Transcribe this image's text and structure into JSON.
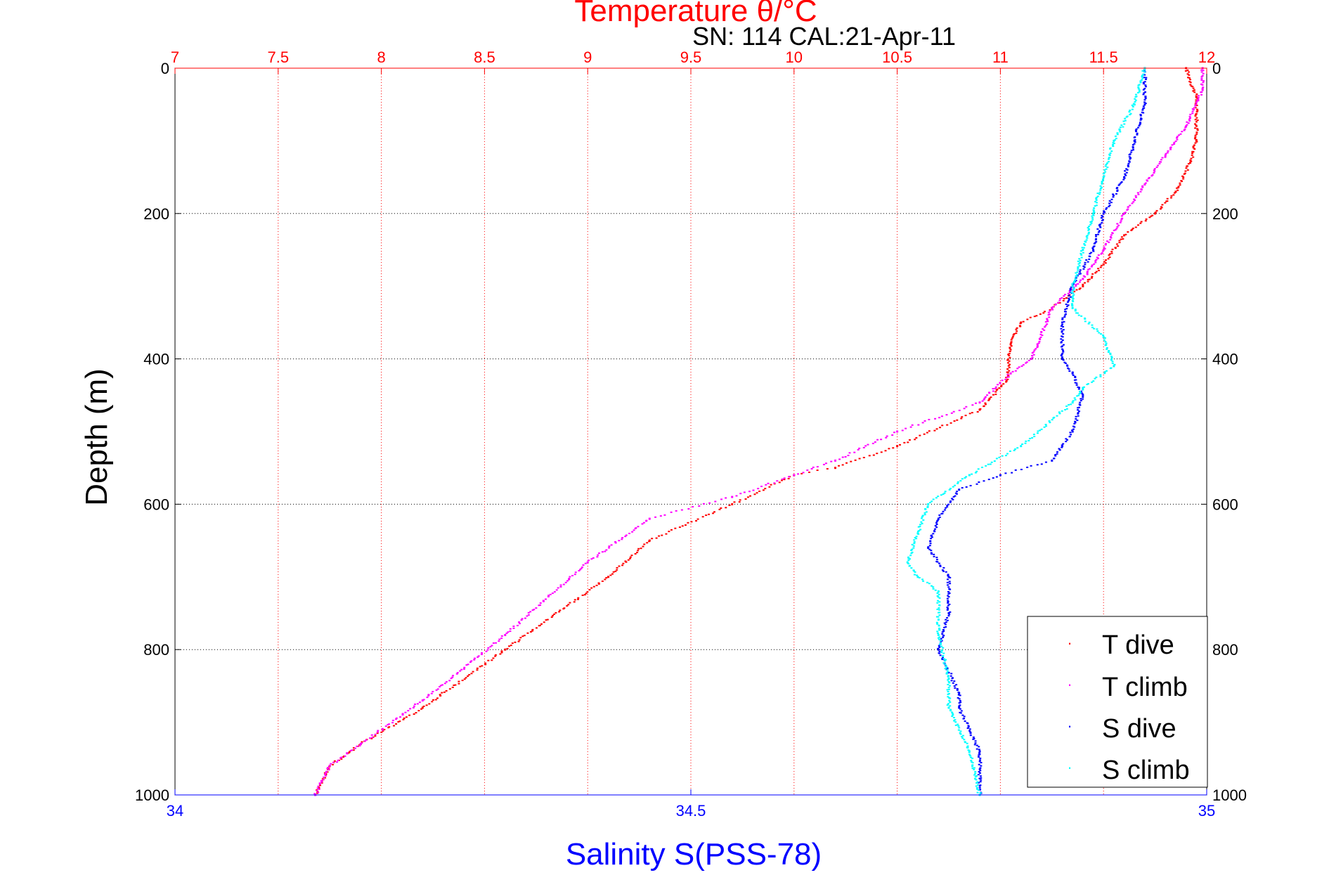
{
  "chart_data": {
    "type": "scatter",
    "title": "Temperature θ/°C",
    "subtitle": "SN: 114  CAL:21-Apr-11",
    "ylabel": "Depth (m)",
    "xlabel_bottom": "Salinity S(PSS-78)",
    "xlabel_top": "Temperature θ/°C",
    "ylim": [
      0,
      1000
    ],
    "y_reversed": true,
    "y_ticks": [
      "0",
      "200",
      "400",
      "600",
      "800",
      "1000"
    ],
    "x_top_lim": [
      7,
      12
    ],
    "x_top_ticks": [
      "7",
      "7.5",
      "8",
      "8.5",
      "9",
      "9.5",
      "10",
      "10.5",
      "11",
      "11.5",
      "12"
    ],
    "x_bottom_lim": [
      34,
      35
    ],
    "x_bottom_ticks": [
      "34",
      "34.5",
      "35"
    ],
    "grid": true,
    "legend_position": "bottom-right",
    "colors": {
      "temperature_axis": "#ff0000",
      "salinity_axis": "#0000ff",
      "grid": "#000000"
    },
    "series": [
      {
        "name": "T dive",
        "axis": "temperature",
        "color": "#ff0000",
        "x": [
          11.9,
          11.95,
          11.95,
          11.92,
          11.85,
          11.75,
          11.6,
          11.5,
          11.4,
          11.25,
          11.1,
          11.05,
          11.03,
          10.9,
          10.5,
          10.2,
          10.0,
          9.7,
          9.3,
          9.1,
          8.6,
          8.2,
          7.9,
          7.75,
          7.68
        ],
        "y": [
          0,
          40,
          100,
          130,
          170,
          200,
          230,
          270,
          300,
          330,
          350,
          380,
          430,
          470,
          520,
          550,
          560,
          600,
          650,
          700,
          800,
          880,
          930,
          960,
          1000
        ]
      },
      {
        "name": "T climb",
        "axis": "temperature",
        "color": "#ff00ff",
        "x": [
          11.98,
          11.98,
          11.9,
          11.8,
          11.7,
          11.6,
          11.5,
          11.4,
          11.25,
          11.18,
          11.15,
          11.05,
          10.9,
          10.5,
          10.2,
          10.0,
          9.7,
          9.3,
          9.0,
          8.6,
          8.2,
          7.9,
          7.75,
          7.68
        ],
        "y": [
          0,
          30,
          80,
          120,
          160,
          200,
          250,
          290,
          330,
          380,
          400,
          420,
          460,
          500,
          540,
          560,
          590,
          620,
          680,
          780,
          870,
          930,
          960,
          1000
        ]
      },
      {
        "name": "S dive",
        "axis": "salinity",
        "color": "#0000ff",
        "x": [
          34.94,
          34.94,
          34.93,
          34.92,
          34.9,
          34.89,
          34.87,
          34.86,
          34.86,
          34.87,
          34.88,
          34.87,
          34.86,
          34.85,
          34.8,
          34.76,
          34.74,
          34.73,
          34.75,
          34.75,
          34.74,
          34.76,
          34.76,
          34.78,
          34.78
        ],
        "y": [
          0,
          50,
          100,
          150,
          200,
          250,
          300,
          350,
          400,
          420,
          450,
          500,
          520,
          540,
          560,
          580,
          620,
          660,
          700,
          750,
          800,
          860,
          880,
          940,
          1000
        ]
      },
      {
        "name": "S climb",
        "axis": "salinity",
        "color": "#00ffff",
        "x": [
          34.94,
          34.93,
          34.91,
          34.9,
          34.89,
          34.88,
          34.87,
          34.87,
          34.9,
          34.91,
          34.88,
          34.87,
          34.82,
          34.77,
          34.73,
          34.72,
          34.71,
          34.72,
          34.74,
          34.74,
          34.75,
          34.75,
          34.77,
          34.78
        ],
        "y": [
          0,
          50,
          100,
          150,
          200,
          250,
          300,
          330,
          370,
          410,
          440,
          460,
          520,
          560,
          600,
          640,
          680,
          700,
          720,
          780,
          840,
          880,
          940,
          1000
        ]
      }
    ]
  }
}
